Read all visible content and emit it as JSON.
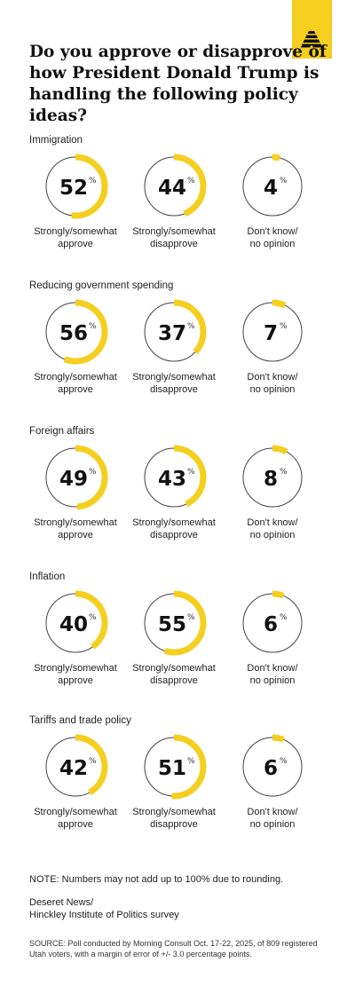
{
  "title": "Do you approve or disapprove of how President Donald Trump is handling the following policy ideas?",
  "colors": {
    "accent": "#f5cf1f",
    "ring": "#444444",
    "text": "#1a1a1a"
  },
  "logo_icon": "beehive-icon",
  "chart_data": {
    "type": "donut",
    "series_labels": [
      [
        "Strongly/somewhat",
        "approve"
      ],
      [
        "Strongly/somewhat",
        "disapprove"
      ],
      [
        "Don't know/",
        "no opinion"
      ]
    ],
    "percent_symbol": "%",
    "categories": [
      {
        "name": "Immigration",
        "values": [
          52,
          44,
          4
        ]
      },
      {
        "name": "Reducing government spending",
        "values": [
          56,
          37,
          7
        ]
      },
      {
        "name": "Foreign affairs",
        "values": [
          49,
          43,
          8
        ]
      },
      {
        "name": "Inflation",
        "values": [
          40,
          55,
          6
        ]
      },
      {
        "name": "Tariffs and trade policy",
        "values": [
          42,
          51,
          6
        ]
      }
    ]
  },
  "note": "NOTE: Numbers may not add up to 100% due to rounding.",
  "credit": [
    "Deseret News/",
    "Hinckley Institute of Politics survey"
  ],
  "source": "SOURCE: Poll conducted by Morning Consult Oct. 17-22, 2025, of 809 registered Utah voters, with a margin of error of +/- 3.0 percentage points."
}
